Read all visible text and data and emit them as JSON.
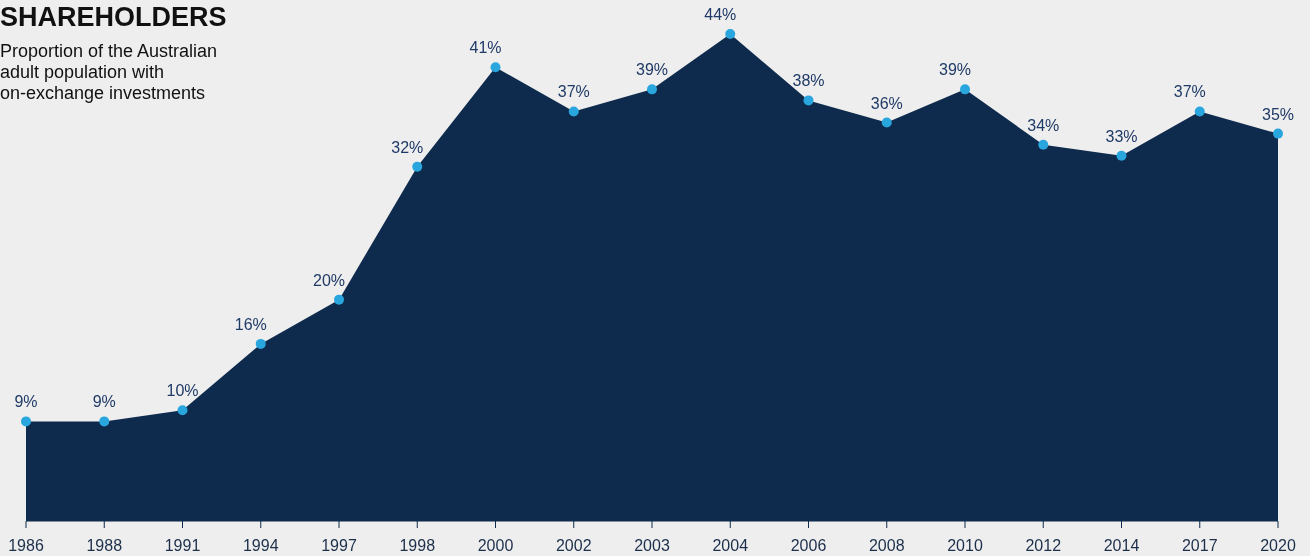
{
  "chart_data": {
    "type": "area",
    "title": "SHAREHOLDERS",
    "subtitle": "Proportion of the Australian adult population with on-exchange investments",
    "categories": [
      "1986",
      "1988",
      "1991",
      "1994",
      "1997",
      "1998",
      "2000",
      "2002",
      "2003",
      "2004",
      "2006",
      "2008",
      "2010",
      "2012",
      "2014",
      "2017",
      "2020"
    ],
    "values": [
      9,
      9,
      10,
      16,
      20,
      32,
      41,
      37,
      39,
      44,
      38,
      36,
      39,
      34,
      33,
      37,
      35
    ],
    "value_labels": [
      "9%",
      "9%",
      "10%",
      "16%",
      "20%",
      "32%",
      "41%",
      "37%",
      "39%",
      "44%",
      "38%",
      "36%",
      "39%",
      "34%",
      "33%",
      "37%",
      "35%"
    ],
    "color": "#0e2a4d",
    "marker": "circle"
  }
}
